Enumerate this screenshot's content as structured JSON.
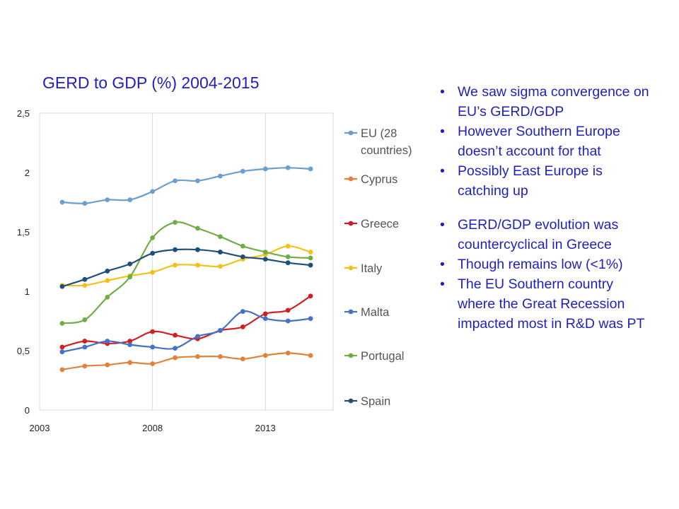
{
  "chart_data": {
    "type": "line",
    "title": "GERD to GDP (%) 2004-2015",
    "xlabel": "",
    "ylabel": "",
    "xlim": [
      2003,
      2016
    ],
    "ylim": [
      0,
      2.5
    ],
    "x_ticks": [
      2003,
      2008,
      2013
    ],
    "x_tick_labels": [
      "2003",
      "2008",
      "2013"
    ],
    "y_ticks": [
      0,
      0.5,
      1,
      1.5,
      2,
      2.5
    ],
    "y_tick_labels": [
      "0",
      "0,5",
      "1",
      "1,5",
      "2",
      "2,5"
    ],
    "grid": "vertical",
    "legend_position": "right",
    "x": [
      2004,
      2005,
      2006,
      2007,
      2008,
      2009,
      2010,
      2011,
      2012,
      2013,
      2014,
      2015
    ],
    "series": [
      {
        "name": "EU (28 countries)",
        "legend_lines": [
          "EU (28",
          "countries)"
        ],
        "color": "#6a9fcf",
        "values": [
          1.75,
          1.74,
          1.77,
          1.77,
          1.84,
          1.93,
          1.93,
          1.97,
          2.01,
          2.03,
          2.04,
          2.03
        ]
      },
      {
        "name": "Cyprus",
        "legend_lines": [
          "Cyprus"
        ],
        "color": "#e0823a",
        "values": [
          0.34,
          0.37,
          0.38,
          0.4,
          0.39,
          0.44,
          0.45,
          0.45,
          0.43,
          0.46,
          0.48,
          0.46
        ]
      },
      {
        "name": "Greece",
        "legend_lines": [
          "Greece"
        ],
        "color": "#d01f1f",
        "values": [
          0.53,
          0.58,
          0.56,
          0.58,
          0.66,
          0.63,
          0.6,
          0.67,
          0.7,
          0.81,
          0.84,
          0.96
        ]
      },
      {
        "name": "Italy",
        "legend_lines": [
          "Italy"
        ],
        "color": "#f2c21a",
        "values": [
          1.05,
          1.05,
          1.09,
          1.13,
          1.16,
          1.22,
          1.22,
          1.21,
          1.27,
          1.31,
          1.38,
          1.33
        ]
      },
      {
        "name": "Malta",
        "legend_lines": [
          "Malta"
        ],
        "color": "#4472c4",
        "values": [
          0.49,
          0.53,
          0.58,
          0.55,
          0.53,
          0.52,
          0.62,
          0.67,
          0.83,
          0.77,
          0.75,
          0.77
        ]
      },
      {
        "name": "Portugal",
        "legend_lines": [
          "Portugal"
        ],
        "color": "#70ad47",
        "values": [
          0.73,
          0.76,
          0.95,
          1.12,
          1.45,
          1.58,
          1.53,
          1.46,
          1.38,
          1.33,
          1.29,
          1.28
        ]
      },
      {
        "name": "Spain",
        "legend_lines": [
          "Spain"
        ],
        "color": "#1f4e79",
        "values": [
          1.04,
          1.1,
          1.17,
          1.23,
          1.32,
          1.35,
          1.35,
          1.33,
          1.29,
          1.27,
          1.24,
          1.22
        ]
      }
    ]
  },
  "bullets": [
    {
      "lines": [
        "We saw sigma convergence on",
        "EU’s GERD/GDP"
      ],
      "gap": false
    },
    {
      "lines": [
        "However Southern Europe",
        "doesn’t account for that"
      ],
      "gap": false
    },
    {
      "lines": [
        "Possibly East Europe is",
        "catching up"
      ],
      "gap": false
    },
    {
      "lines": [
        "GERD/GDP evolution was",
        "countercyclical in Greece"
      ],
      "gap": true
    },
    {
      "lines": [
        "Though remains low (<1%)"
      ],
      "gap": false
    },
    {
      "lines": [
        "The EU Southern country",
        "where the Great Recession",
        "impacted most in R&D was PT"
      ],
      "gap": false
    }
  ]
}
